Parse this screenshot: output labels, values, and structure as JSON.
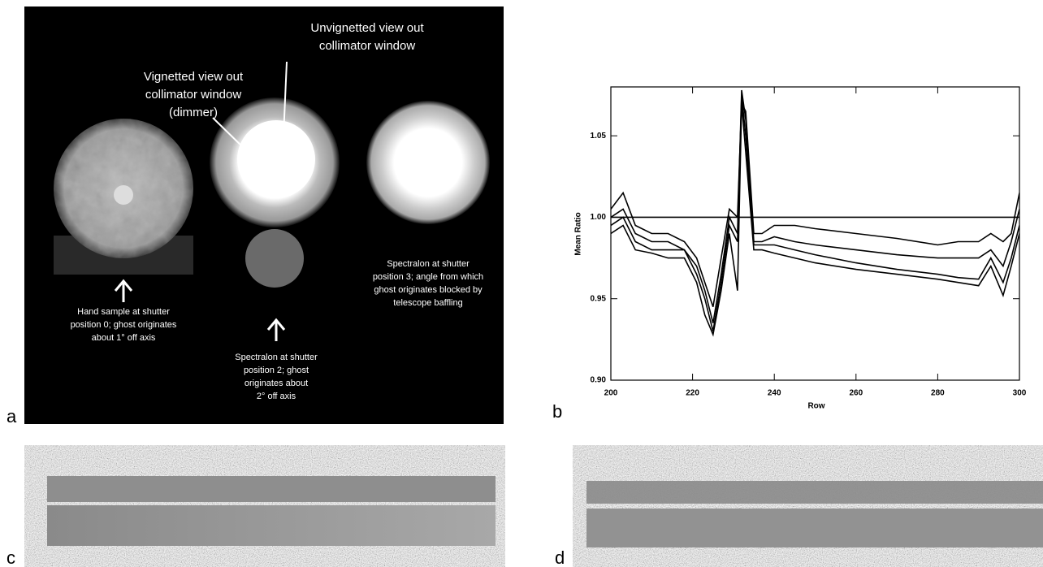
{
  "panel_labels": [
    "a",
    "b",
    "c",
    "d"
  ],
  "panel_a": {
    "annotations": [
      {
        "lines": [
          "Unvignetted view out",
          "collimator window"
        ]
      },
      {
        "lines": [
          "Vignetted view out",
          "collimator window",
          "(dimmer)"
        ]
      },
      {
        "lines": [
          "Hand sample at shutter",
          "position 0; ghost originates",
          "about 1° off axis"
        ]
      },
      {
        "lines": [
          "Spectralon at shutter",
          "position 2; ghost",
          "originates about",
          "2° off axis"
        ]
      },
      {
        "lines": [
          "Spectralon at shutter",
          "position 3; angle from which",
          "ghost originates blocked by",
          "telescope baffling"
        ]
      }
    ]
  },
  "chart_data": {
    "type": "line",
    "x_label": "Row",
    "y_label": "Mean Ratio",
    "x": [
      200,
      203,
      206,
      210,
      214,
      218,
      221,
      223,
      225,
      227,
      229,
      231,
      232,
      233,
      235,
      237,
      240,
      245,
      250,
      260,
      270,
      280,
      285,
      290,
      293,
      296,
      298,
      300
    ],
    "xlim": [
      200,
      300
    ],
    "xticks": [
      200,
      220,
      240,
      260,
      280,
      300
    ],
    "ylim": [
      0.9,
      1.08
    ],
    "yticks": [
      {
        "value": 0.9,
        "label": "0.90"
      },
      0.95,
      {
        "value": 1.0,
        "label": "1.00"
      },
      1.05
    ],
    "series": [
      {
        "color": "#000000",
        "values": [
          1.005,
          1.015,
          0.995,
          0.99,
          0.99,
          0.985,
          0.975,
          0.96,
          0.945,
          0.975,
          1.005,
          1.0,
          1.07,
          1.065,
          0.99,
          0.99,
          0.995,
          0.995,
          0.993,
          0.99,
          0.987,
          0.983,
          0.985,
          0.985,
          0.99,
          0.985,
          0.99,
          1.015
        ]
      },
      {
        "color": "#000000",
        "values": [
          1.0,
          1.005,
          0.99,
          0.985,
          0.985,
          0.98,
          0.97,
          0.955,
          0.935,
          0.965,
          1.0,
          0.99,
          1.078,
          1.06,
          0.985,
          0.985,
          0.988,
          0.985,
          0.983,
          0.98,
          0.977,
          0.975,
          0.975,
          0.975,
          0.98,
          0.97,
          0.985,
          1.005
        ]
      },
      {
        "color": "#000000",
        "values": [
          0.995,
          1.0,
          0.985,
          0.98,
          0.98,
          0.98,
          0.965,
          0.95,
          0.93,
          0.96,
          0.995,
          0.985,
          1.075,
          1.05,
          0.983,
          0.983,
          0.983,
          0.98,
          0.977,
          0.972,
          0.968,
          0.965,
          0.963,
          0.962,
          0.975,
          0.96,
          0.975,
          0.995
        ]
      },
      {
        "color": "#000000",
        "values": [
          0.99,
          0.995,
          0.98,
          0.978,
          0.975,
          0.975,
          0.96,
          0.94,
          0.928,
          0.955,
          0.99,
          0.955,
          1.07,
          1.04,
          0.98,
          0.98,
          0.978,
          0.975,
          0.972,
          0.968,
          0.965,
          0.962,
          0.96,
          0.958,
          0.97,
          0.952,
          0.97,
          0.99
        ]
      },
      {
        "color": "#000000",
        "values": [
          1.0,
          1.0,
          1.0,
          1.0,
          1.0,
          1.0,
          1.0,
          1.0,
          1.0,
          1.0,
          1.0,
          1.0,
          1.0,
          1.0,
          1.0,
          1.0,
          1.0,
          1.0,
          1.0,
          1.0,
          1.0,
          1.0,
          1.0,
          1.0,
          1.0,
          1.0,
          1.0,
          1.0
        ]
      }
    ]
  }
}
